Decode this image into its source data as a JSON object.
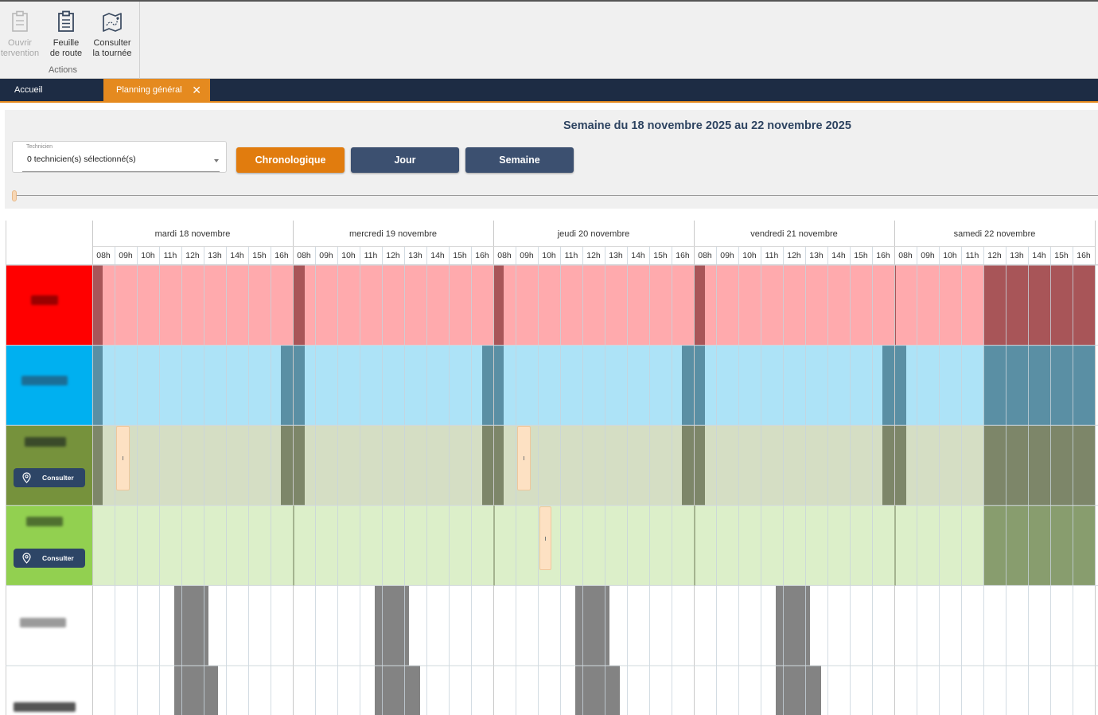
{
  "ribbon": {
    "group_label": "Actions",
    "buttons": [
      {
        "label_line1": "Ouvrir",
        "label_line2": "tervention",
        "icon": "clipboard-icon",
        "enabled": false
      },
      {
        "label_line1": "Feuille",
        "label_line2": "de route",
        "icon": "clipboard-list-icon",
        "enabled": true
      },
      {
        "label_line1": "Consulter",
        "label_line2": "la tournée",
        "icon": "map-route-icon",
        "enabled": true
      }
    ]
  },
  "tabs": {
    "home": "Accueil",
    "planning": "Planning général",
    "close_glyph": "✕"
  },
  "toolbar": {
    "week_title": "Semaine du 18 novembre 2025 au 22 novembre 2025",
    "technician_label": "Technicien",
    "technician_value": "0 technicien(s) sélectionné(s)",
    "views": {
      "chrono": "Chronologique",
      "day": "Jour",
      "week": "Semaine"
    }
  },
  "colors": {
    "accent": "#e17c0e",
    "navy": "#1d2c44",
    "button_navy": "#3c5070",
    "grid_line": "#c8d4dc"
  },
  "planning": {
    "days": [
      "mardi 18 novembre",
      "mercredi 19 novembre",
      "jeudi 20 novembre",
      "vendredi 21 novembre",
      "samedi 22 novembre"
    ],
    "hours": [
      "08h",
      "09h",
      "10h",
      "11h",
      "12h",
      "13h",
      "14h",
      "15h",
      "16h"
    ],
    "consult_label": "Consulter",
    "rows": [
      {
        "color": "#ff0000",
        "light": "#ffaaad",
        "dark": "#a85558",
        "has_consult": false
      },
      {
        "color": "#00b0f0",
        "light": "#ade3f7",
        "dark": "#5a8fa4",
        "has_consult": false
      },
      {
        "color": "#76923c",
        "light": "#d5dec4",
        "dark": "#7d8669",
        "has_consult": true
      },
      {
        "color": "#92d050",
        "light": "#dcefc9",
        "dark": "#889d6e",
        "has_consult": true
      },
      {
        "color": "#ffffff",
        "light": "#ffffff",
        "dark": "#838383",
        "has_consult": false
      },
      {
        "color": "#ffffff",
        "light": "#ffffff",
        "dark": "#838383",
        "has_consult": false
      }
    ]
  }
}
